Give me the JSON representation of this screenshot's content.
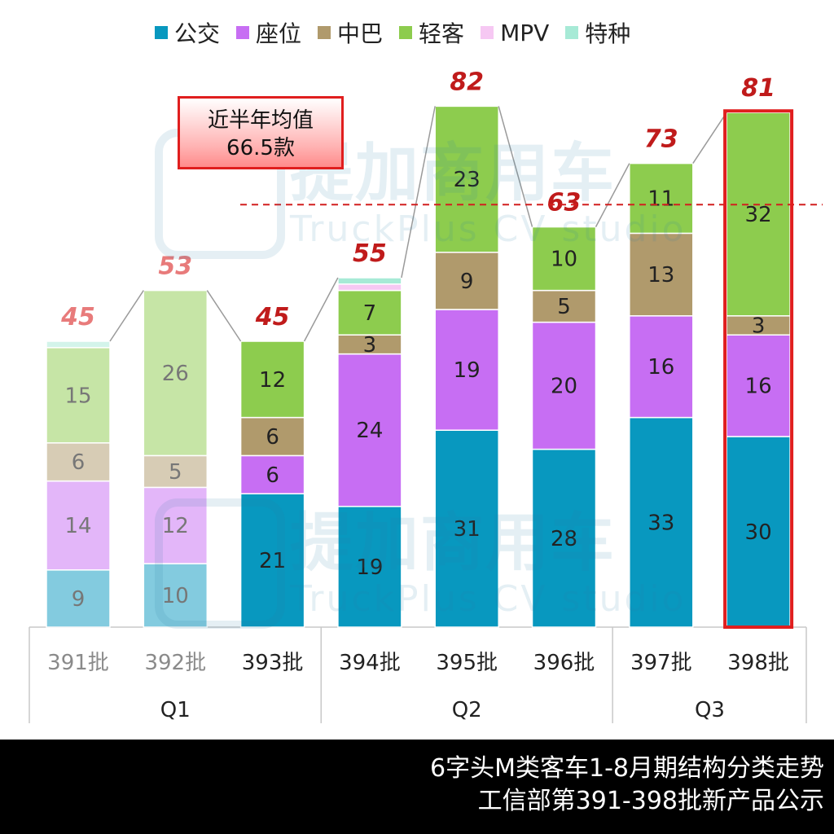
{
  "legend": [
    {
      "name": "公交",
      "color": "#0898bf"
    },
    {
      "name": "座位",
      "color": "#c76ef3"
    },
    {
      "name": "中巴",
      "color": "#b09a6c"
    },
    {
      "name": "轻客",
      "color": "#8dcc4e"
    },
    {
      "name": "MPV",
      "color": "#f6c8f3"
    },
    {
      "name": "特种",
      "color": "#a7ead6"
    }
  ],
  "annotation": {
    "line1": "近半年均值",
    "line2": "66.5款"
  },
  "watermark": {
    "cn": "提加商用车",
    "en": "TruckPlus CV studio"
  },
  "footer": {
    "line1": "6字头M类客车1-8月期结构分类走势",
    "line2": "工信部第391-398批新产品公示"
  },
  "chart_data": {
    "type": "bar",
    "stacked": true,
    "categories": [
      "391批",
      "392批",
      "393批",
      "394批",
      "395批",
      "396批",
      "397批",
      "398批"
    ],
    "groups": [
      {
        "label": "Q1",
        "from": 0,
        "to": 2
      },
      {
        "label": "Q2",
        "from": 3,
        "to": 5
      },
      {
        "label": "Q3",
        "from": 6,
        "to": 7
      }
    ],
    "series": [
      {
        "name": "公交",
        "color": "#0898bf",
        "values": [
          9,
          10,
          21,
          19,
          31,
          28,
          33,
          30
        ]
      },
      {
        "name": "座位",
        "color": "#c76ef3",
        "values": [
          14,
          12,
          6,
          24,
          19,
          20,
          16,
          16
        ]
      },
      {
        "name": "中巴",
        "color": "#b09a6c",
        "values": [
          6,
          5,
          6,
          3,
          9,
          5,
          13,
          3
        ]
      },
      {
        "name": "轻客",
        "color": "#8dcc4e",
        "values": [
          15,
          26,
          12,
          7,
          23,
          10,
          11,
          32
        ]
      },
      {
        "name": "MPV",
        "color": "#f6c8f3",
        "values": [
          0,
          0,
          0,
          1,
          0,
          0,
          0,
          0
        ]
      },
      {
        "name": "特种",
        "color": "#a7ead6",
        "values": [
          1,
          0,
          0,
          1,
          0,
          0,
          0,
          0
        ]
      }
    ],
    "totals": [
      "45",
      "53",
      "45",
      "55",
      "82",
      "63",
      "73",
      "81"
    ],
    "faded": [
      true,
      true,
      false,
      false,
      false,
      false,
      false,
      false
    ],
    "highlight_index": 7,
    "average_line": 66.5,
    "ylim": [
      0,
      85
    ]
  }
}
